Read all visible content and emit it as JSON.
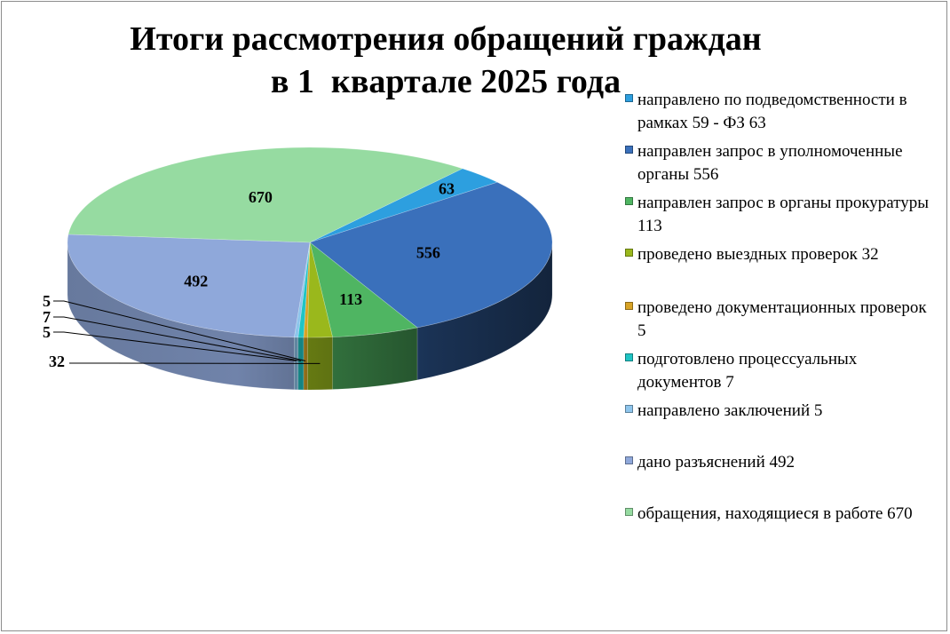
{
  "title": [
    "Итоги рассмотрения обращений граждан",
    "в 1  квартале 2025 года"
  ],
  "chart_data": {
    "type": "pie",
    "variant": "3d-pie",
    "legend_position": "right",
    "series": [
      {
        "name": "",
        "categories": [
          "направлено по подведомственности в рамках 59 - ФЗ 63",
          "направлен запрос в уполномоченные органы 556",
          "направлен запрос в органы прокуратуры  113",
          "проведено выездных проверок 32",
          "проведено документационных проверок 5",
          "подготовлено процессуальных документов 7",
          "направлено заключений 5",
          "дано разъяснений 492",
          "обращения, находящиеся в работе 670"
        ],
        "values": [
          63,
          556,
          113,
          32,
          5,
          7,
          5,
          492,
          670
        ],
        "data_labels": [
          "63",
          "556",
          "113",
          "32",
          "5",
          "7",
          "5",
          "492",
          "670"
        ],
        "colors": [
          "#2d9fdf",
          "#3a70bb",
          "#4fb562",
          "#9ab81c",
          "#d8a326",
          "#1fc4c4",
          "#8ec5ec",
          "#8fa8da",
          "#96dba1"
        ]
      }
    ]
  }
}
